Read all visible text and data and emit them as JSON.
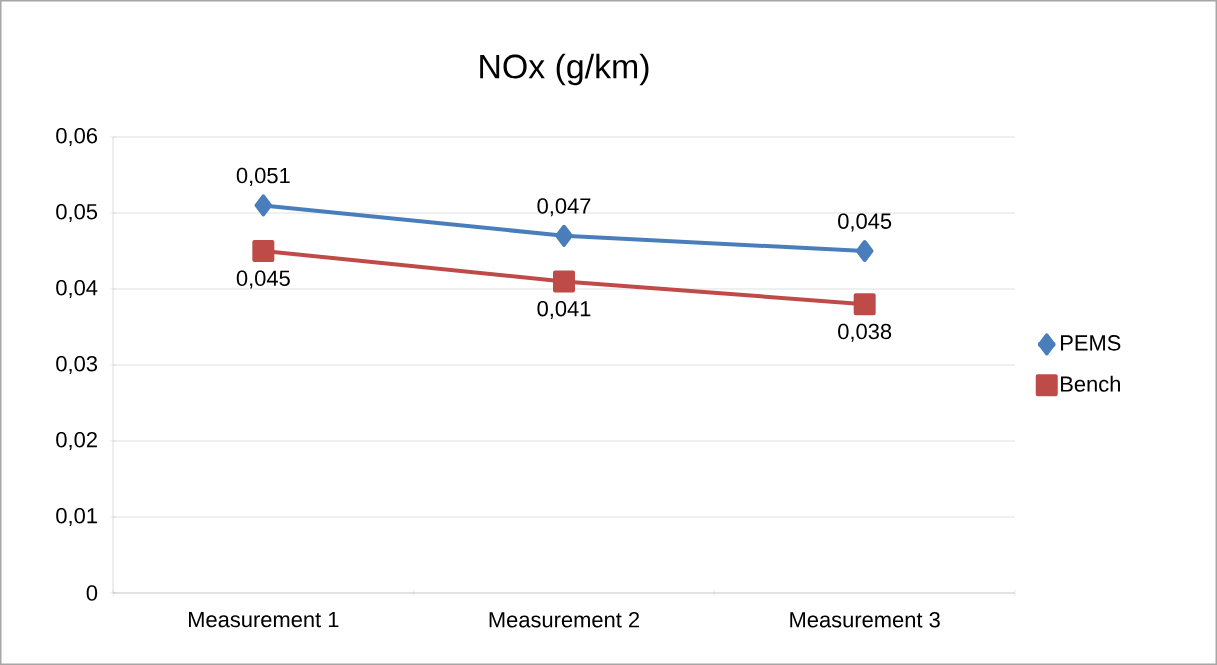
{
  "chart_data": {
    "type": "line",
    "title": "NOx (g/km)",
    "categories": [
      "Measurement 1",
      "Measurement 2",
      "Measurement 3"
    ],
    "series": [
      {
        "name": "PEMS",
        "color": "#4a7ebb",
        "marker": "diamond",
        "values": [
          0.051,
          0.047,
          0.045
        ],
        "value_labels": [
          "0,051",
          "0,047",
          "0,045"
        ]
      },
      {
        "name": "Bench",
        "color": "#be4b48",
        "marker": "square",
        "values": [
          0.045,
          0.041,
          0.038
        ],
        "value_labels": [
          "0,045",
          "0,041",
          "0,038"
        ]
      }
    ],
    "ylim": [
      0,
      0.06
    ],
    "yticks": [
      {
        "value": 0,
        "label": "0"
      },
      {
        "value": 0.01,
        "label": "0,01"
      },
      {
        "value": 0.02,
        "label": "0,02"
      },
      {
        "value": 0.03,
        "label": "0,03"
      },
      {
        "value": 0.04,
        "label": "0,04"
      },
      {
        "value": 0.05,
        "label": "0,05"
      },
      {
        "value": 0.06,
        "label": "0,06"
      }
    ],
    "grid": "y",
    "legend": "right",
    "line_style": "solid"
  }
}
